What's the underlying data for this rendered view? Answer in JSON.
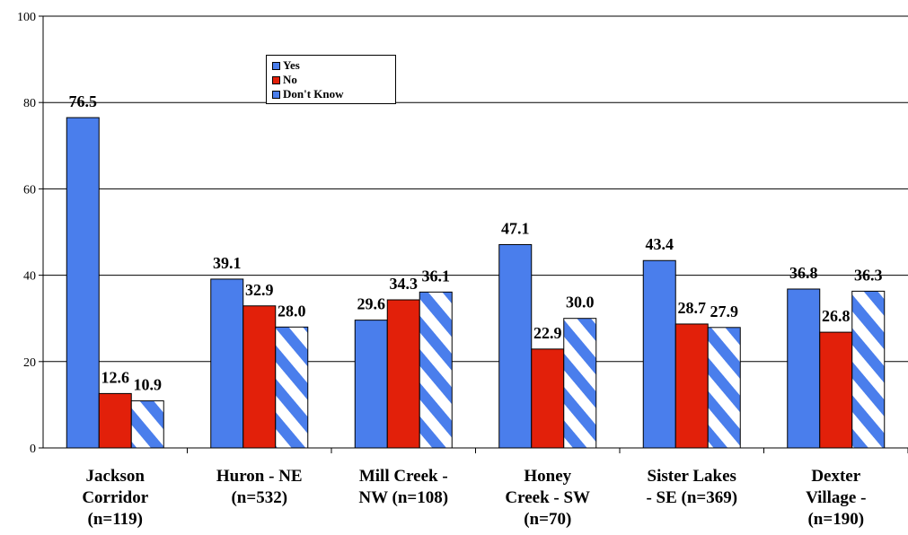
{
  "colors": {
    "yes": "#4a7eec",
    "no": "#e2200a",
    "dont_know": "#4a7eec",
    "dont_know_bg": "#ffffff",
    "grid": "#000000"
  },
  "chart_data": {
    "type": "bar",
    "title": "",
    "xlabel": "",
    "ylabel": "",
    "ylim": [
      0,
      100
    ],
    "yticks": [
      "0",
      "20",
      "40",
      "60",
      "80",
      "100"
    ],
    "grid": true,
    "legend_position": "top-left",
    "categories": [
      [
        "Jackson",
        "Corridor",
        "(n=119)"
      ],
      [
        "Huron - NE",
        "(n=532)"
      ],
      [
        "Mill Creek -",
        "NW (n=108)"
      ],
      [
        "Honey",
        "Creek - SW",
        "(n=70)"
      ],
      [
        "Sister Lakes",
        "- SE (n=369)"
      ],
      [
        "Dexter",
        "Village -",
        "(n=190)"
      ]
    ],
    "series": [
      {
        "name": "Yes",
        "values": [
          76.5,
          39.1,
          29.6,
          47.1,
          43.4,
          36.8
        ],
        "labels": [
          "76.5",
          "39.1",
          "29.6",
          "47.1",
          "43.4",
          "36.8"
        ]
      },
      {
        "name": "No",
        "values": [
          12.6,
          32.9,
          34.3,
          22.9,
          28.7,
          26.8
        ],
        "labels": [
          "12.6",
          "32.9",
          "34.3",
          "22.9",
          "28.7",
          "26.8"
        ]
      },
      {
        "name": "Don't Know",
        "values": [
          10.9,
          28.0,
          36.1,
          30.0,
          27.9,
          36.3
        ],
        "labels": [
          "10.9",
          "28.0",
          "36.1",
          "30.0",
          "27.9",
          "36.3"
        ]
      }
    ]
  }
}
